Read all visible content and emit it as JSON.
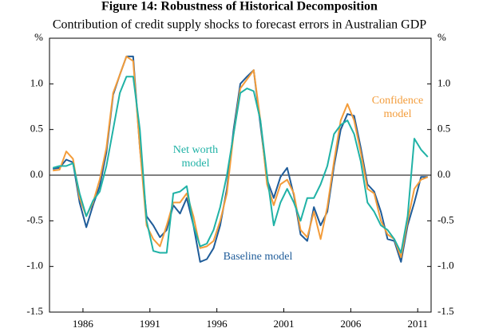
{
  "chart_data": {
    "type": "line",
    "title": "Figure 14: Robustness of Historical Decomposition",
    "subtitle": "Contribution of credit supply shocks to forecast errors in Australian GDP",
    "x": [
      1983.75,
      1984.25,
      1984.75,
      1985.25,
      1985.75,
      1986.25,
      1986.75,
      1987.25,
      1987.75,
      1988.25,
      1988.75,
      1989.25,
      1989.75,
      1990.25,
      1990.75,
      1991.25,
      1991.75,
      1992.25,
      1992.75,
      1993.25,
      1993.75,
      1994.25,
      1994.75,
      1995.25,
      1995.75,
      1996.25,
      1996.75,
      1997.25,
      1997.75,
      1998.25,
      1998.75,
      1999.25,
      1999.75,
      2000.25,
      2000.75,
      2001.25,
      2001.75,
      2002.25,
      2002.75,
      2003.25,
      2003.75,
      2004.25,
      2004.75,
      2005.25,
      2005.75,
      2006.25,
      2006.75,
      2007.25,
      2007.75,
      2008.25,
      2008.75,
      2009.25,
      2009.75,
      2010.25,
      2010.75,
      2011.25,
      2011.75
    ],
    "series": [
      {
        "name": "Baseline model",
        "color": "#1f5c99",
        "values": [
          0.07,
          0.08,
          0.17,
          0.14,
          -0.3,
          -0.57,
          -0.33,
          -0.12,
          0.25,
          0.88,
          1.1,
          1.3,
          1.3,
          0.3,
          -0.45,
          -0.55,
          -0.68,
          -0.6,
          -0.33,
          -0.42,
          -0.25,
          -0.55,
          -0.95,
          -0.92,
          -0.8,
          -0.55,
          -0.15,
          0.5,
          1.0,
          1.08,
          1.15,
          0.55,
          -0.05,
          -0.25,
          -0.02,
          0.08,
          -0.22,
          -0.65,
          -0.72,
          -0.35,
          -0.55,
          -0.4,
          0.1,
          0.5,
          0.67,
          0.65,
          0.3,
          -0.1,
          -0.18,
          -0.4,
          -0.7,
          -0.72,
          -0.95,
          -0.55,
          -0.3,
          -0.02,
          -0.02
        ]
      },
      {
        "name": "Confidence model",
        "color": "#f39c3a",
        "values": [
          0.05,
          0.06,
          0.26,
          0.18,
          -0.25,
          -0.45,
          -0.3,
          -0.05,
          0.3,
          0.9,
          1.1,
          1.3,
          1.25,
          0.3,
          -0.55,
          -0.7,
          -0.78,
          -0.55,
          -0.3,
          -0.3,
          -0.2,
          -0.45,
          -0.8,
          -0.78,
          -0.72,
          -0.5,
          -0.2,
          0.45,
          0.95,
          1.05,
          1.15,
          0.6,
          -0.1,
          -0.33,
          -0.1,
          -0.05,
          -0.2,
          -0.6,
          -0.68,
          -0.4,
          -0.7,
          -0.35,
          0.15,
          0.6,
          0.78,
          0.6,
          0.25,
          -0.15,
          -0.2,
          -0.5,
          -0.65,
          -0.7,
          -0.9,
          -0.5,
          -0.15,
          -0.05,
          -0.02
        ]
      },
      {
        "name": "Net worth model",
        "color": "#20b2a6",
        "values": [
          0.08,
          0.1,
          0.1,
          0.13,
          -0.2,
          -0.45,
          -0.28,
          -0.18,
          0.1,
          0.5,
          0.9,
          1.08,
          1.08,
          0.5,
          -0.5,
          -0.83,
          -0.85,
          -0.85,
          -0.2,
          -0.18,
          -0.12,
          -0.55,
          -0.78,
          -0.75,
          -0.6,
          -0.35,
          0.0,
          0.45,
          0.9,
          0.95,
          0.92,
          0.6,
          0.0,
          -0.55,
          -0.3,
          -0.15,
          -0.3,
          -0.5,
          -0.25,
          -0.25,
          -0.1,
          0.1,
          0.45,
          0.55,
          0.6,
          0.45,
          0.15,
          -0.3,
          -0.4,
          -0.55,
          -0.6,
          -0.7,
          -0.85,
          -0.45,
          0.4,
          0.28,
          0.2
        ]
      }
    ],
    "xlim": [
      1983.5,
      2012
    ],
    "xticks": [
      1986,
      1991,
      1996,
      2001,
      2006,
      2011
    ],
    "ylim": [
      -1.5,
      1.5
    ],
    "yticks": [
      {
        "value": 1.5,
        "label": "%"
      },
      {
        "value": 1.0,
        "label": "1.0"
      },
      {
        "value": 0.5,
        "label": "0.5"
      },
      {
        "value": 0,
        "label": "0.0"
      },
      {
        "value": -0.5,
        "label": "-0.5"
      },
      {
        "value": -1.0,
        "label": "-1.0"
      },
      {
        "value": -1.5,
        "label": "-1.5"
      }
    ],
    "grid": false
  }
}
